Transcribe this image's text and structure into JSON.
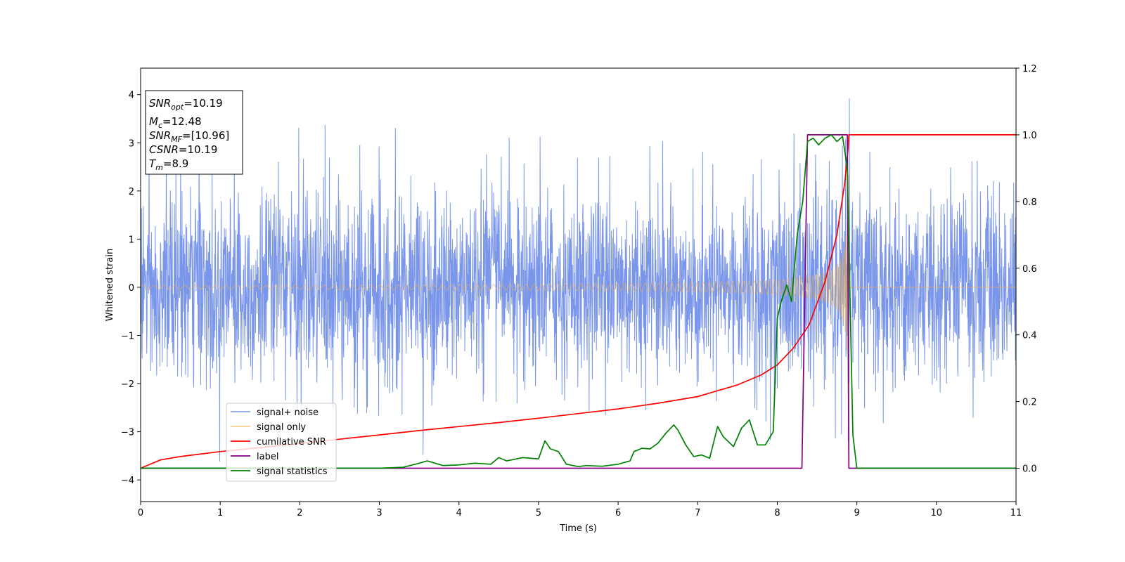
{
  "chart_data": {
    "type": "line",
    "xlabel": "Time (s)",
    "ylabel": "Whitened strain",
    "xlim": [
      0,
      11
    ],
    "ylim_left": [
      -4.45,
      4.55
    ],
    "ylim_right": [
      -0.1,
      1.2
    ],
    "x_ticks": [
      0,
      1,
      2,
      3,
      4,
      5,
      6,
      7,
      8,
      9,
      10,
      11
    ],
    "y_ticks_left": [
      -4,
      -3,
      -2,
      -1,
      0,
      1,
      2,
      3,
      4
    ],
    "y_ticks_right": [
      0.0,
      0.2,
      0.4,
      0.6,
      0.8,
      1.0,
      1.2
    ],
    "grid": false,
    "legend_placement": "lower-left",
    "annotation": {
      "lines": [
        {
          "sym": "SNR",
          "sub": "opt",
          "val": "=10.19"
        },
        {
          "sym": "M",
          "sub": "c",
          "val": "=12.48"
        },
        {
          "sym": "SNR",
          "sub": "MF",
          "val": "=[10.96]"
        },
        {
          "sym": "CSNR",
          "sub": "",
          "val": "=10.19"
        },
        {
          "sym": "T",
          "sub": "m",
          "val": "=8.9"
        }
      ]
    },
    "series": [
      {
        "name": "signal+ noise",
        "color": "#4169e1",
        "axis": "left",
        "style": "noise",
        "sigma": 1.0,
        "x_range": [
          0,
          11
        ]
      },
      {
        "name": "signal only",
        "color": "#f5b041",
        "axis": "left",
        "style": "chirp",
        "merger_time": 8.9
      },
      {
        "name": "cumilative SNR",
        "color": "#ff0000",
        "axis": "right",
        "x": [
          0,
          0.25,
          0.5,
          1,
          1.5,
          2,
          2.5,
          3,
          3.5,
          4,
          4.5,
          5,
          5.5,
          6,
          6.5,
          7,
          7.5,
          7.8,
          8,
          8.2,
          8.4,
          8.6,
          8.75,
          8.85,
          8.89,
          8.9,
          11
        ],
        "y": [
          0.0,
          0.025,
          0.035,
          0.05,
          0.062,
          0.074,
          0.087,
          0.1,
          0.113,
          0.125,
          0.137,
          0.15,
          0.164,
          0.178,
          0.195,
          0.215,
          0.25,
          0.28,
          0.31,
          0.36,
          0.43,
          0.56,
          0.7,
          0.86,
          0.96,
          1.0,
          1.0
        ]
      },
      {
        "name": "label",
        "color": "#800080",
        "axis": "right",
        "x": [
          0,
          8.31,
          8.38,
          8.88,
          8.9,
          11
        ],
        "y": [
          0.0,
          0.0,
          1.0,
          1.0,
          0.0,
          0.0
        ]
      },
      {
        "name": "signal statistics",
        "color": "#008000",
        "axis": "right",
        "x": [
          0,
          0.5,
          1,
          1.5,
          2,
          2.5,
          3,
          3.3,
          3.5,
          3.6,
          3.8,
          4,
          4.2,
          4.4,
          4.5,
          4.6,
          4.8,
          5,
          5.08,
          5.15,
          5.25,
          5.35,
          5.5,
          5.6,
          5.8,
          6,
          6.15,
          6.2,
          6.3,
          6.4,
          6.5,
          6.6,
          6.7,
          6.75,
          6.85,
          6.95,
          7.05,
          7.15,
          7.25,
          7.32,
          7.45,
          7.55,
          7.65,
          7.75,
          7.85,
          7.95,
          8.0,
          8.05,
          8.12,
          8.18,
          8.25,
          8.32,
          8.38,
          8.45,
          8.52,
          8.6,
          8.68,
          8.75,
          8.82,
          8.88,
          8.95,
          9.0,
          11
        ],
        "y": [
          0.0,
          0.0,
          0.0,
          0.0,
          0.0,
          0.0,
          0.0,
          0.003,
          0.015,
          0.022,
          0.008,
          0.01,
          0.015,
          0.012,
          0.032,
          0.022,
          0.032,
          0.028,
          0.082,
          0.058,
          0.05,
          0.012,
          0.005,
          0.008,
          0.006,
          0.012,
          0.022,
          0.05,
          0.06,
          0.058,
          0.075,
          0.105,
          0.13,
          0.115,
          0.07,
          0.035,
          0.04,
          0.03,
          0.125,
          0.095,
          0.065,
          0.12,
          0.145,
          0.07,
          0.07,
          0.11,
          0.45,
          0.5,
          0.55,
          0.5,
          0.7,
          0.8,
          0.98,
          0.99,
          0.97,
          0.99,
          1.0,
          0.98,
          0.995,
          0.9,
          0.1,
          0.0,
          0.0
        ]
      }
    ]
  }
}
